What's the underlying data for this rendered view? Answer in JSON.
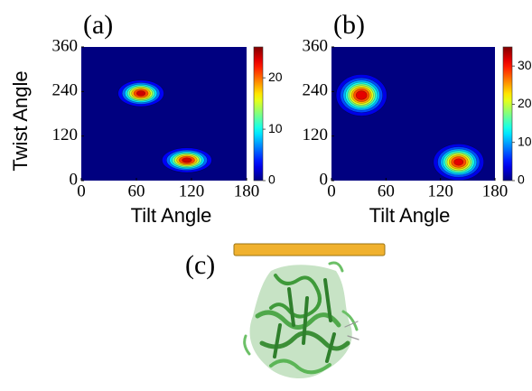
{
  "chart_data": [
    {
      "type": "contour",
      "title": "(a)",
      "x_label": "Tilt Angle",
      "y_label": "Twist Angle",
      "xlim": [
        0,
        180
      ],
      "xticks": [
        0,
        60,
        120,
        180
      ],
      "ylim": [
        0,
        360
      ],
      "yticks": [
        0,
        120,
        240,
        360
      ],
      "zlim": [
        0,
        26
      ],
      "zticks": [
        0,
        10,
        20
      ],
      "levels": [
        3,
        6,
        9,
        12,
        15,
        18,
        21,
        24
      ],
      "peaks": [
        {
          "x": 65,
          "y": 235,
          "value": 26,
          "sx": 12,
          "sy": 17
        },
        {
          "x": 115,
          "y": 55,
          "value": 26,
          "sx": 13,
          "sy": 16
        }
      ]
    },
    {
      "type": "contour",
      "title": "(b)",
      "x_label": "Tilt Angle",
      "xlim": [
        0,
        180
      ],
      "xticks": [
        0,
        60,
        120,
        180
      ],
      "ylim": [
        0,
        360
      ],
      "yticks": [
        0,
        120,
        240,
        360
      ],
      "zlim": [
        0,
        35
      ],
      "zticks": [
        0,
        10,
        20,
        30
      ],
      "levels": [
        3.5,
        7,
        10.5,
        14,
        17.5,
        21,
        24.5,
        28,
        31.5
      ],
      "peaks": [
        {
          "x": 33,
          "y": 230,
          "value": 35,
          "sx": 13,
          "sy": 26
        },
        {
          "x": 140,
          "y": 50,
          "value": 34,
          "sx": 13,
          "sy": 23
        }
      ]
    }
  ],
  "panel_c": {
    "label": "(c)"
  }
}
